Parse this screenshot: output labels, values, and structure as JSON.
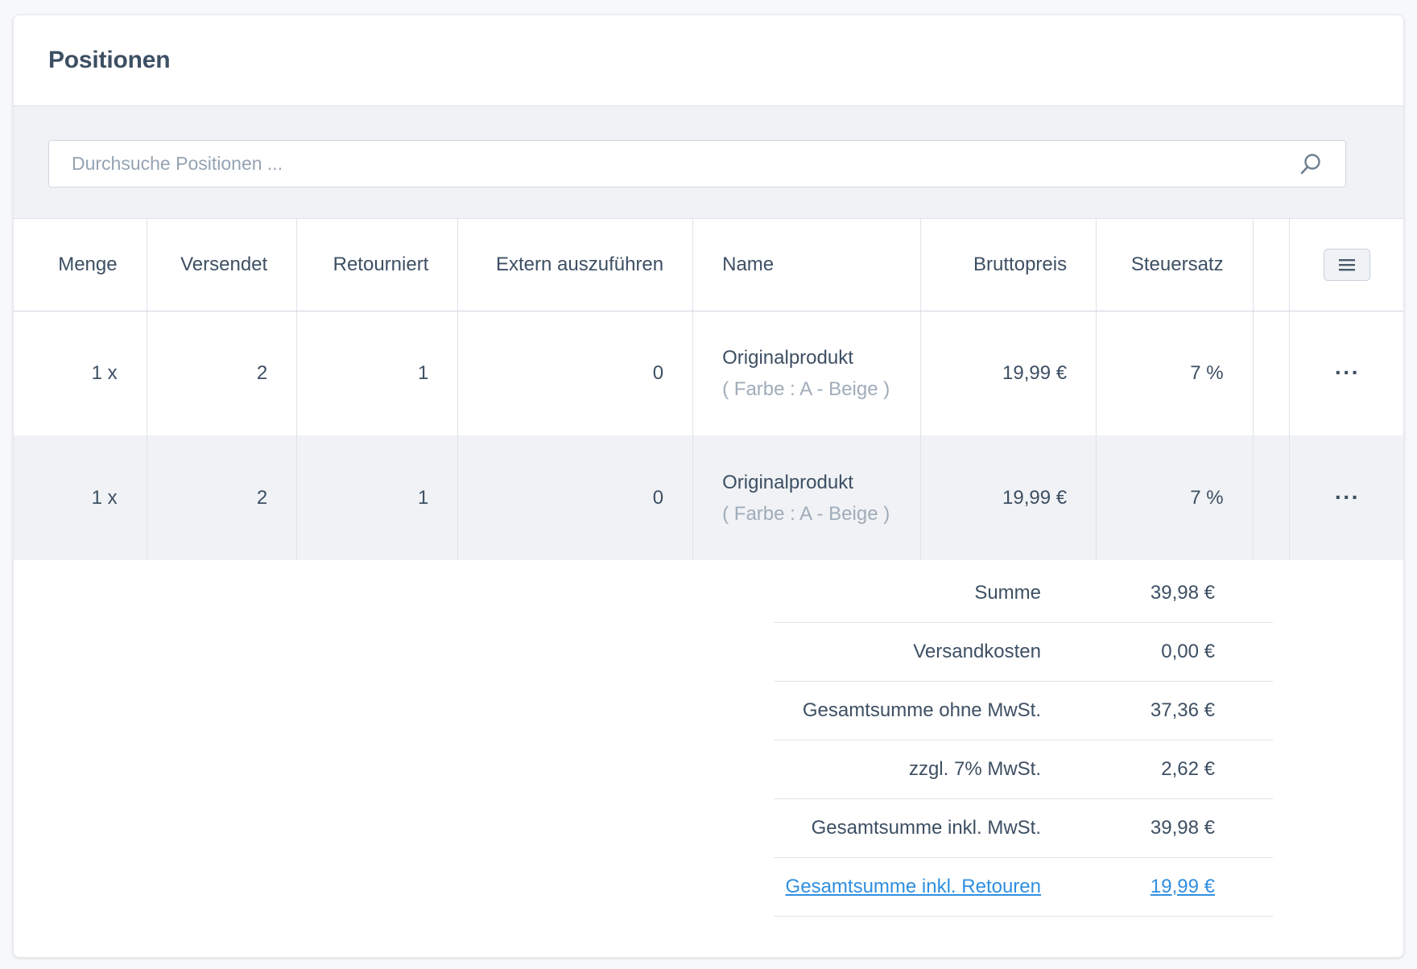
{
  "card": {
    "title": "Positionen"
  },
  "search": {
    "placeholder": "Durchsuche Positionen ..."
  },
  "table": {
    "headers": {
      "quantity": "Menge",
      "shipped": "Versendet",
      "returned": "Retourniert",
      "external": "Extern auszuführen",
      "name": "Name",
      "gross_price": "Bruttopreis",
      "tax_rate": "Steuersatz"
    },
    "rows": [
      {
        "quantity": "1 x",
        "shipped": "2",
        "returned": "1",
        "external": "0",
        "name": "Originalprodukt",
        "variant": "( Farbe : A - Beige )",
        "gross_price": "19,99 €",
        "tax_rate": "7 %"
      },
      {
        "quantity": "1 x",
        "shipped": "2",
        "returned": "1",
        "external": "0",
        "name": "Originalprodukt",
        "variant": "( Farbe : A - Beige )",
        "gross_price": "19,99 €",
        "tax_rate": "7 %"
      }
    ]
  },
  "summary": {
    "sum": {
      "label": "Summe",
      "value": "39,98 €"
    },
    "shipping": {
      "label": "Versandkosten",
      "value": "0,00 €"
    },
    "net_total": {
      "label": "Gesamtsumme ohne MwSt.",
      "value": "37,36 €"
    },
    "vat": {
      "label": "zzgl. 7% MwSt.",
      "value": "2,62 €"
    },
    "gross_total": {
      "label": "Gesamtsumme inkl. MwSt.",
      "value": "39,98 €"
    },
    "total_with_returns": {
      "label": "Gesamtsumme inkl. Retouren",
      "value": "19,99 €"
    }
  },
  "icons": {
    "search": "search-icon",
    "settings": "list-settings-icon",
    "row_actions": "ellipsis-icon"
  },
  "colors": {
    "text": "#3d4f63",
    "muted": "#a0acb9",
    "link": "#2f8fe0",
    "row_alt": "#f0f2f5"
  }
}
